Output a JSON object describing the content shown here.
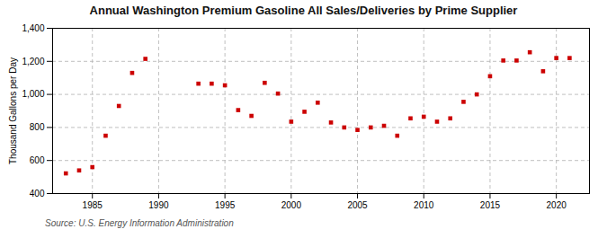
{
  "chart_data": {
    "type": "scatter",
    "title": "Annual Washington Premium Gasoline All Sales/Deliveries by Prime Supplier",
    "ylabel": "Thousand Gallons per Day",
    "annotations": [
      "Source: U.S. Energy Information Administration"
    ],
    "color": "#cc0000",
    "marker": "square",
    "grid": true,
    "x": [
      1983,
      1984,
      1985,
      1986,
      1987,
      1988,
      1989,
      1993,
      1994,
      1995,
      1996,
      1997,
      1998,
      1999,
      2000,
      2001,
      2002,
      2003,
      2004,
      2005,
      2006,
      2007,
      2008,
      2009,
      2010,
      2011,
      2012,
      2013,
      2014,
      2015,
      2016,
      2017,
      2018,
      2019,
      2020,
      2021
    ],
    "values": [
      522,
      540,
      560,
      750,
      930,
      1130,
      1215,
      1065,
      1065,
      1055,
      905,
      870,
      1070,
      1005,
      835,
      895,
      950,
      830,
      800,
      785,
      800,
      810,
      750,
      855,
      865,
      835,
      855,
      955,
      1000,
      1110,
      1205,
      1205,
      1255,
      1140,
      1220,
      1220
    ],
    "xlim": [
      1982,
      2022.5
    ],
    "xticks": [
      1985,
      1990,
      1995,
      2000,
      2005,
      2010,
      2015,
      2020
    ],
    "ylim": [
      400,
      1400
    ],
    "yticks": [
      400,
      600,
      800,
      {
        "value": 1000,
        "label": "1,000"
      },
      {
        "value": 1200,
        "label": "1,200"
      },
      {
        "value": 1400,
        "label": "1,400"
      }
    ]
  }
}
